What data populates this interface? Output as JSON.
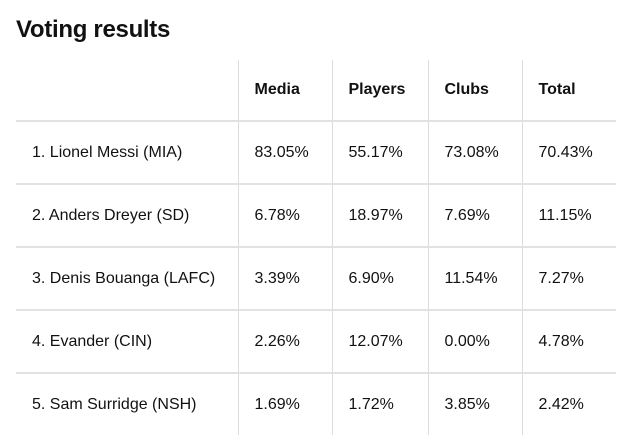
{
  "header": {
    "title": "Voting results"
  },
  "table": {
    "columns": [
      "",
      "Media",
      "Players",
      "Clubs",
      "Total"
    ],
    "rows": [
      [
        "1. Lionel Messi (MIA)",
        "83.05%",
        "55.17%",
        "73.08%",
        "70.43%"
      ],
      [
        "2. Anders Dreyer (SD)",
        "6.78%",
        "18.97%",
        "7.69%",
        "11.15%"
      ],
      [
        "3. Denis Bouanga (LAFC)",
        "3.39%",
        "6.90%",
        "11.54%",
        "7.27%"
      ],
      [
        "4. Evander (CIN)",
        "2.26%",
        "12.07%",
        "0.00%",
        "4.78%"
      ],
      [
        "5. Sam Surridge (NSH)",
        "1.69%",
        "1.72%",
        "3.85%",
        "2.42%"
      ]
    ]
  }
}
